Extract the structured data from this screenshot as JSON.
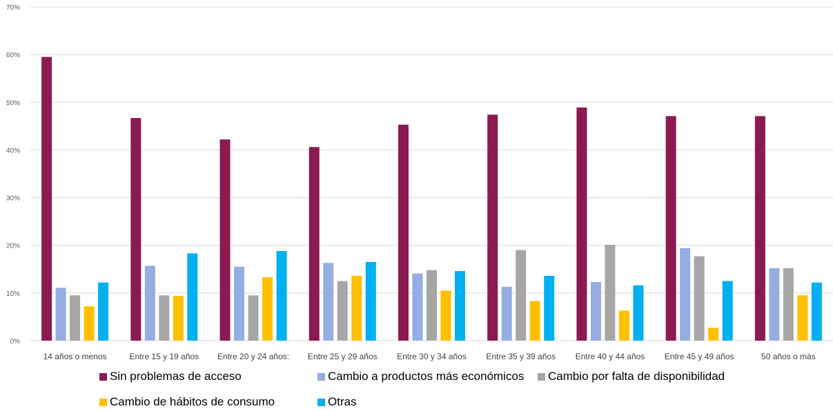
{
  "chart_data": {
    "type": "bar",
    "categories": [
      "14 años o menos",
      "Entre 15 y 19 años",
      "Entre 20 y 24 años:",
      "Entre 25 y 29 años",
      "Entre 30 y 34 años",
      "Entre 35 y 39 años",
      "Entre 40 y 44 años",
      "Entre 45 y 49 años",
      "50 años o más"
    ],
    "series": [
      {
        "name": "Sin problemas de acceso",
        "color": "#8B1A52",
        "values": [
          59.5,
          46.7,
          42.2,
          40.6,
          45.3,
          47.4,
          48.9,
          47.1,
          47.1
        ]
      },
      {
        "name": "Cambio a productos más económicos",
        "color": "#95ADE0",
        "values": [
          11.1,
          15.7,
          15.5,
          16.3,
          14.1,
          11.3,
          12.3,
          19.4,
          15.2
        ]
      },
      {
        "name": "Cambio por falta de disponibilidad",
        "color": "#A6A6A6",
        "values": [
          9.5,
          9.5,
          9.5,
          12.5,
          14.8,
          19.0,
          20.1,
          17.7,
          15.2
        ]
      },
      {
        "name": "Cambio de hábitos de consumo",
        "color": "#FFC000",
        "values": [
          7.2,
          9.4,
          13.3,
          13.6,
          10.5,
          8.3,
          6.3,
          2.7,
          9.5
        ]
      },
      {
        "name": "Otras",
        "color": "#00B0F0",
        "values": [
          12.2,
          18.3,
          18.8,
          16.5,
          14.6,
          13.6,
          11.6,
          12.5,
          12.2
        ]
      }
    ],
    "yticks": [
      "0%",
      "10%",
      "20%",
      "30%",
      "40%",
      "50%",
      "60%",
      "70%"
    ],
    "ylim": [
      0,
      70
    ],
    "grid": true,
    "legend_position": "bottom"
  }
}
